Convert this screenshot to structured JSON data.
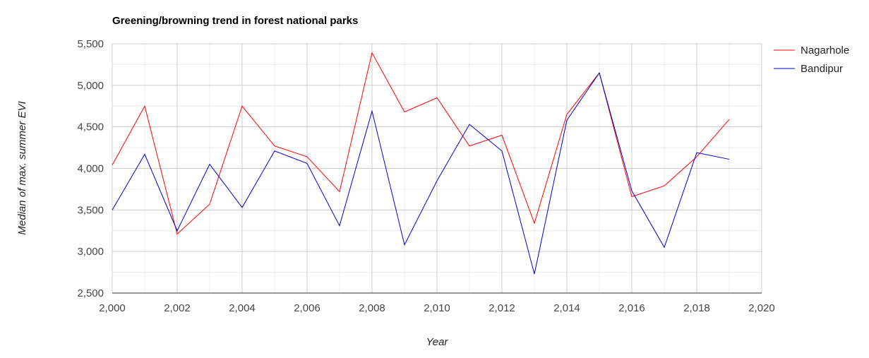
{
  "chart_data": {
    "type": "line",
    "title": "Greening/browning trend in forest national parks",
    "xlabel": "Year",
    "ylabel": "Median of max. summer EVI",
    "xlim": [
      2000,
      2020
    ],
    "ylim": [
      2500,
      5500
    ],
    "x_ticks": [
      "2,000",
      "2,002",
      "2,004",
      "2,006",
      "2,008",
      "2,010",
      "2,012",
      "2,014",
      "2,016",
      "2,018",
      "2,020"
    ],
    "y_ticks": [
      "2,500",
      "3,000",
      "3,500",
      "4,000",
      "4,500",
      "5,000",
      "5,500"
    ],
    "grid": true,
    "legend_position": "right",
    "x": [
      2000,
      2001,
      2002,
      2003,
      2004,
      2005,
      2006,
      2007,
      2008,
      2009,
      2010,
      2011,
      2012,
      2013,
      2014,
      2015,
      2016,
      2017,
      2018,
      2019
    ],
    "series": [
      {
        "name": "Nagarhole",
        "color": "#ff0000",
        "values": [
          4040,
          4750,
          3210,
          3570,
          4750,
          4270,
          4140,
          3720,
          5390,
          4680,
          4850,
          4270,
          4400,
          3340,
          4650,
          5150,
          3660,
          3790,
          4140,
          4590
        ]
      },
      {
        "name": "Bandipur",
        "color": "#0000cc",
        "values": [
          3500,
          4170,
          3250,
          4050,
          3530,
          4210,
          4060,
          3310,
          4690,
          3080,
          3850,
          4530,
          4210,
          2730,
          4580,
          5150,
          3730,
          3050,
          4190,
          4110
        ]
      }
    ]
  }
}
